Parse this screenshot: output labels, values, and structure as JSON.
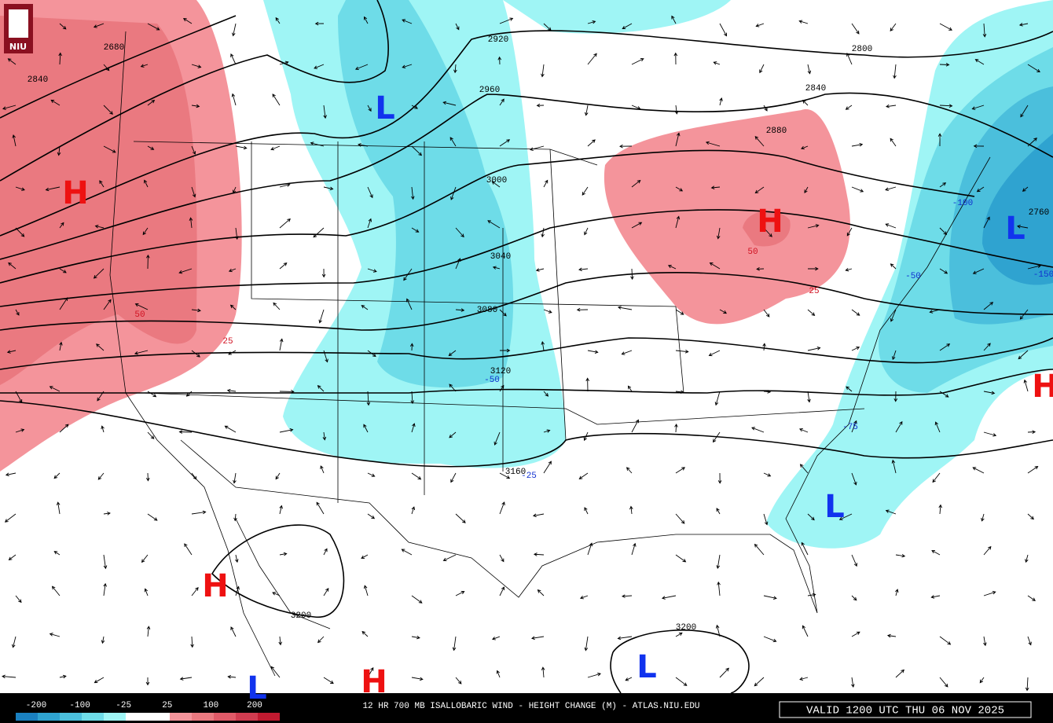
{
  "logo": "NIU",
  "map": {
    "contour_labels": [
      "2800",
      "2840",
      "2880",
      "2920",
      "2960",
      "3000",
      "3040",
      "3080",
      "3120",
      "3160",
      "3200",
      "3200",
      "2680",
      "2840",
      "2760"
    ],
    "change_labels": [
      "50",
      "25",
      "50",
      "25",
      "-50",
      "-25",
      "-150",
      "-50",
      "-100",
      "-75"
    ],
    "centers": [
      "H",
      "L",
      "H",
      "L",
      "H",
      "L",
      "H",
      "L",
      "H",
      "L"
    ]
  },
  "colorbar": {
    "labels": [
      "-200",
      "-100",
      "-25",
      "25",
      "100",
      "200"
    ]
  },
  "footer": {
    "title": "12 HR 700 MB ISALLOBARIC WIND - HEIGHT CHANGE (M) - ATLAS.NIU.EDU",
    "valid": "VALID 1200 UTC THU 06 NOV 2025"
  }
}
